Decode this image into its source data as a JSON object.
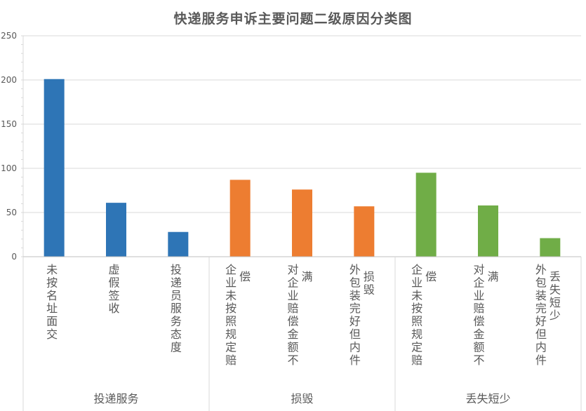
{
  "chart_data": {
    "type": "bar",
    "title": "快递服务申诉主要问题二级原因分类图",
    "xlabel": "",
    "ylabel": "",
    "ylim": [
      0,
      250
    ],
    "y_ticks": [
      "0",
      "50",
      "100",
      "150",
      "200",
      "250"
    ],
    "grid": true,
    "groups": [
      {
        "name": "投递服务",
        "color": "#2E75B6",
        "categories": [
          {
            "label": "未按名址面交",
            "value": 201
          },
          {
            "label": "虚假签收",
            "value": 61
          },
          {
            "label": "投递员服务态度",
            "value": 28
          }
        ]
      },
      {
        "name": "损毁",
        "color": "#ED7D31",
        "categories": [
          {
            "label": "企业未按照规定赔偿",
            "value": 87
          },
          {
            "label": "对企业赔偿金额不满",
            "value": 76
          },
          {
            "label": "外包装完好但内件损毁",
            "value": 57
          }
        ]
      },
      {
        "name": "丢失短少",
        "color": "#70AD47",
        "categories": [
          {
            "label": "企业未按照规定赔偿",
            "value": 95
          },
          {
            "label": "对企业赔偿金额不满",
            "value": 58
          },
          {
            "label": "外包装完好但内件丢失短少",
            "value": 21
          }
        ]
      }
    ]
  }
}
